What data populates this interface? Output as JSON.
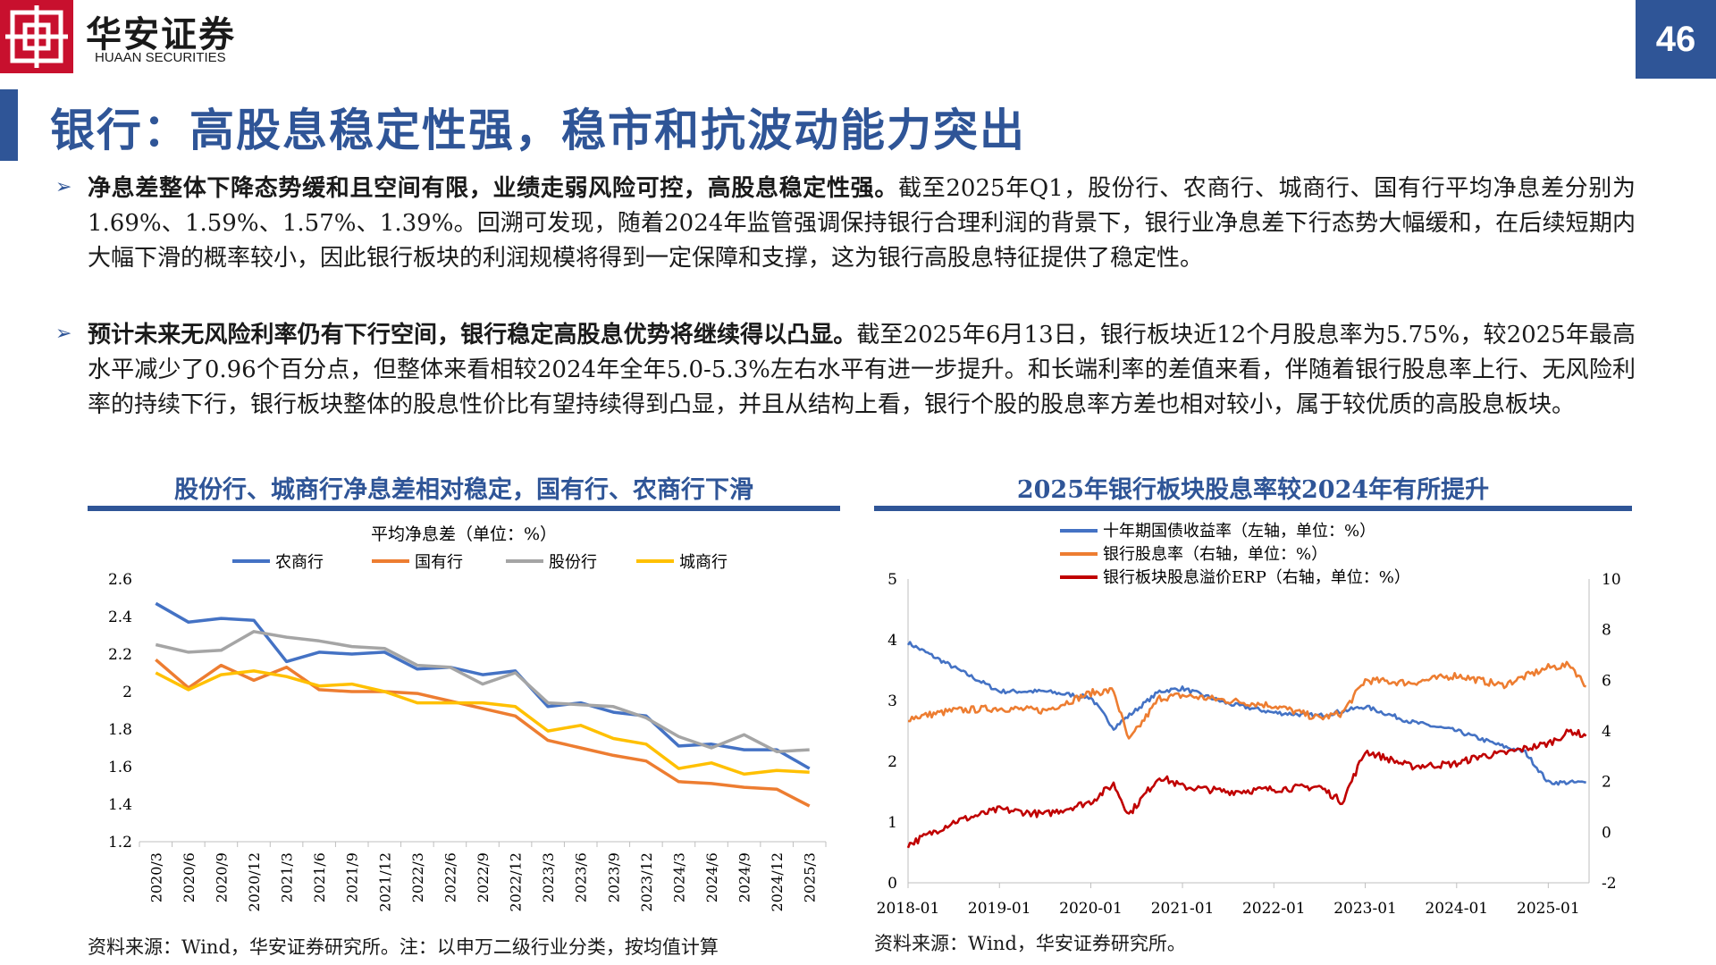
{
  "header": {
    "logo_cn": "华安证券",
    "logo_en": "HUAAN SECURITIES",
    "page_number": "46",
    "brand_color": "#c8102e",
    "accent_color": "#2f5597"
  },
  "title": "银行：高股息稳定性强，稳市和抗波动能力突出",
  "paragraphs": [
    {
      "bold": "净息差整体下降态势缓和且空间有限，业绩走弱风险可控，高股息稳定性强。",
      "text": "截至2025年Q1，股份行、农商行、城商行、国有行平均净息差分别为1.69%、1.59%、1.57%、1.39%。回溯可发现，随着2024年监管强调保持银行合理利润的背景下，银行业净息差下行态势大幅缓和，在后续短期内大幅下滑的概率较小，因此银行板块的利润规模将得到一定保障和支撑，这为银行高股息特征提供了稳定性。"
    },
    {
      "bold": "预计未来无风险利率仍有下行空间，银行稳定高股息优势将继续得以凸显。",
      "text": "截至2025年6月13日，银行板块近12个月股息率为5.75%，较2025年最高水平减少了0.96个百分点，但整体来看相较2024年全年5.0-5.3%左右水平有进一步提升。和长端利率的差值来看，伴随着银行股息率上行、无风险利率的持续下行，银行板块整体的股息性价比有望持续得到凸显，并且从结构上看，银行个股的股息率方差也相对较小，属于较优质的高股息板块。"
    }
  ],
  "chart_left": {
    "heading": "股份行、城商行净息差相对稳定，国有行、农商行下滑",
    "source": "资料来源：Wind，华安证券研究所。注：以申万二级行业分类，按均值计算",
    "chart_data": {
      "type": "line",
      "title": "平均净息差（单位：%）",
      "categories": [
        "2020/3",
        "2020/6",
        "2020/9",
        "2020/12",
        "2021/3",
        "2021/6",
        "2021/9",
        "2021/12",
        "2022/3",
        "2022/6",
        "2022/9",
        "2022/12",
        "2023/3",
        "2023/6",
        "2023/9",
        "2023/12",
        "2024/3",
        "2024/6",
        "2024/9",
        "2024/12",
        "2025/3"
      ],
      "ylim": [
        1.2,
        2.6
      ],
      "yticks": [
        "2.6",
        "2.4",
        "2.2",
        "2",
        "1.8",
        "1.6",
        "1.4",
        "1.2"
      ],
      "legend": "top",
      "series": [
        {
          "name": "农商行",
          "color": "#4472c4",
          "values": [
            2.47,
            2.37,
            2.39,
            2.38,
            2.16,
            2.21,
            2.2,
            2.21,
            2.12,
            2.13,
            2.09,
            2.11,
            1.92,
            1.94,
            1.89,
            1.87,
            1.71,
            1.72,
            1.69,
            1.69,
            1.59
          ]
        },
        {
          "name": "国有行",
          "color": "#ed7d31",
          "values": [
            2.17,
            2.02,
            2.14,
            2.06,
            2.13,
            2.01,
            2.0,
            2.0,
            1.99,
            1.95,
            1.91,
            1.87,
            1.74,
            1.7,
            1.66,
            1.63,
            1.52,
            1.51,
            1.49,
            1.48,
            1.39
          ]
        },
        {
          "name": "股份行",
          "color": "#a5a5a5",
          "values": [
            2.25,
            2.21,
            2.22,
            2.32,
            2.29,
            2.27,
            2.24,
            2.23,
            2.14,
            2.13,
            2.04,
            2.1,
            1.94,
            1.93,
            1.92,
            1.86,
            1.76,
            1.7,
            1.77,
            1.68,
            1.69
          ]
        },
        {
          "name": "城商行",
          "color": "#ffc000",
          "values": [
            2.1,
            2.01,
            2.09,
            2.11,
            2.08,
            2.03,
            2.04,
            2.0,
            1.94,
            1.94,
            1.94,
            1.92,
            1.79,
            1.82,
            1.75,
            1.72,
            1.59,
            1.62,
            1.56,
            1.58,
            1.57
          ]
        }
      ]
    }
  },
  "chart_right": {
    "heading": "2025年银行板块股息率较2024年有所提升",
    "source": "资料来源：Wind，华安证券研究所。",
    "chart_data": {
      "type": "line",
      "x_labels": [
        "2018-01",
        "2019-01",
        "2020-01",
        "2021-01",
        "2022-01",
        "2023-01",
        "2024-01",
        "2025-01"
      ],
      "x_range": [
        "2018-01-01",
        "2025-06-13"
      ],
      "y_left": {
        "ylim": [
          0,
          5
        ],
        "ticks": [
          "5",
          "4",
          "3",
          "2",
          "1",
          "0"
        ]
      },
      "y_right": {
        "ylim": [
          -2,
          10
        ],
        "ticks": [
          "10",
          "8",
          "6",
          "4",
          "2",
          "0",
          "-2"
        ]
      },
      "legend": "top",
      "series": [
        {
          "name": "十年期国债收益率（左轴，单位：%）",
          "axis": "left",
          "color": "#4472c4",
          "x": [
            "2018-01",
            "2018-07",
            "2019-01",
            "2019-07",
            "2020-01",
            "2020-04",
            "2020-10",
            "2021-01",
            "2021-07",
            "2022-01",
            "2022-07",
            "2023-01",
            "2023-07",
            "2024-01",
            "2024-07",
            "2024-10",
            "2025-01",
            "2025-06"
          ],
          "values": [
            3.95,
            3.55,
            3.15,
            3.15,
            3.05,
            2.55,
            3.15,
            3.2,
            2.95,
            2.8,
            2.75,
            2.9,
            2.65,
            2.5,
            2.25,
            2.15,
            1.65,
            1.65
          ]
        },
        {
          "name": "银行股息率（右轴，单位：%）",
          "axis": "right",
          "color": "#ed7d31",
          "x": [
            "2018-01",
            "2018-07",
            "2019-01",
            "2019-07",
            "2020-01",
            "2020-04",
            "2020-06",
            "2020-10",
            "2021-01",
            "2021-07",
            "2022-01",
            "2022-07",
            "2022-10",
            "2023-01",
            "2023-07",
            "2024-01",
            "2024-04",
            "2024-07",
            "2025-01",
            "2025-04",
            "2025-06"
          ],
          "values": [
            4.5,
            4.8,
            4.9,
            4.8,
            5.5,
            5.6,
            3.6,
            5.3,
            5.4,
            5.2,
            5.0,
            4.5,
            4.7,
            6.0,
            5.9,
            6.2,
            6.0,
            5.8,
            6.5,
            6.6,
            5.75
          ]
        },
        {
          "name": "银行板块股息溢价ERP（右轴，单位：%）",
          "axis": "right",
          "color": "#c00000",
          "x": [
            "2018-01",
            "2018-07",
            "2019-01",
            "2019-07",
            "2020-01",
            "2020-04",
            "2020-06",
            "2020-10",
            "2021-01",
            "2021-07",
            "2022-01",
            "2022-07",
            "2022-10",
            "2023-01",
            "2023-07",
            "2024-01",
            "2024-04",
            "2024-07",
            "2025-01",
            "2025-04",
            "2025-06"
          ],
          "values": [
            -0.5,
            0.4,
            0.9,
            0.7,
            1.2,
            1.9,
            0.7,
            2.2,
            1.8,
            1.6,
            1.7,
            1.8,
            1.2,
            3.2,
            2.6,
            2.7,
            3.0,
            3.1,
            3.5,
            4.0,
            3.8
          ]
        }
      ]
    }
  }
}
